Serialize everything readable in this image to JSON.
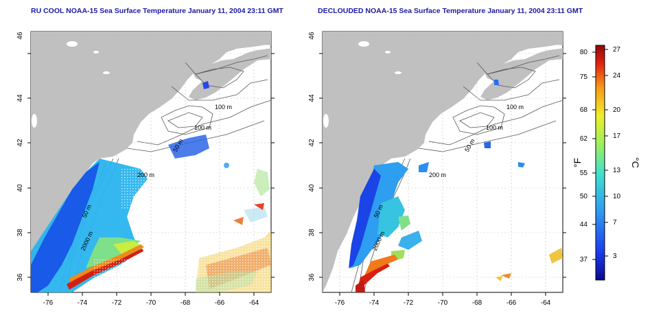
{
  "panels": [
    {
      "title": "RU COOL NOAA-15 Sea Surface Temperature January 11, 2004 23:11 GMT",
      "x_ticks": [
        "-76",
        "-74",
        "-72",
        "-70",
        "-68",
        "-66",
        "-64"
      ],
      "y_ticks": [
        "36",
        "38",
        "40",
        "42",
        "44",
        "46"
      ],
      "contour_labels": [
        "100 m",
        "100 m",
        "50 m",
        "200 m",
        "50 m",
        "2000 m"
      ]
    },
    {
      "title": "DECLOUDED NOAA-15 Sea Surface Temperature January 11, 2004 23:11 GMT",
      "x_ticks": [
        "-76",
        "-74",
        "-72",
        "-70",
        "-68",
        "-66",
        "-64"
      ],
      "y_ticks": [
        "36",
        "38",
        "40",
        "42",
        "44",
        "46"
      ],
      "contour_labels": [
        "100 m",
        "100 m",
        "50 m",
        "200 m",
        "50 m",
        "2000 m"
      ]
    }
  ],
  "colorbar": {
    "f_label": "°F",
    "c_label": "°C",
    "f_ticks": [
      "80",
      "75",
      "68",
      "62",
      "55",
      "50",
      "44",
      "37"
    ],
    "c_ticks": [
      "27",
      "24",
      "20",
      "17",
      "13",
      "10",
      "7",
      "3"
    ]
  },
  "colors": {
    "title": "#1a1aa8",
    "land": "#c0c0c0"
  }
}
